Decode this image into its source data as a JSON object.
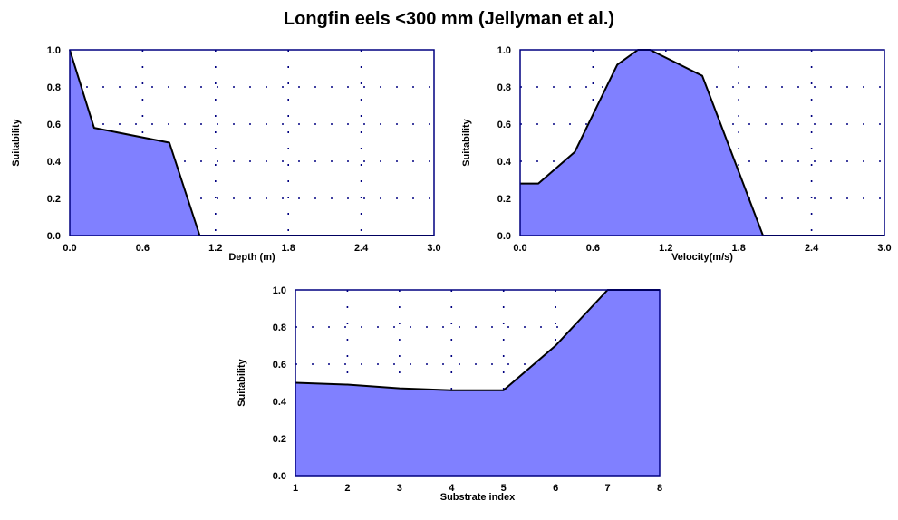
{
  "title": "Longfin eels <300 mm (Jellyman et al.)",
  "colors": {
    "fill": "#8080ff",
    "line": "#000000",
    "axes": "#000080",
    "grid": "#000080"
  },
  "chart_data": [
    {
      "type": "area",
      "xlabel": "Depth (m)",
      "ylabel": "Suitability",
      "xlim": [
        0,
        3.0
      ],
      "ylim": [
        0,
        1.0
      ],
      "xticks": [
        0.0,
        0.6,
        1.2,
        1.8,
        2.4,
        3.0
      ],
      "xtick_labels": [
        "0.0",
        "0.6",
        "1.2",
        "1.8",
        "2.4",
        "3.0"
      ],
      "yticks": [
        0.0,
        0.2,
        0.4,
        0.6,
        0.8,
        1.0
      ],
      "ytick_labels": [
        "0.0",
        "0.2",
        "0.4",
        "0.6",
        "0.8",
        "1.0"
      ],
      "grid": true,
      "x": [
        0,
        0.2,
        0.82,
        1.07,
        3.0
      ],
      "y": [
        1.0,
        0.58,
        0.5,
        0.0,
        0.0
      ]
    },
    {
      "type": "area",
      "xlabel": "Velocity(m/s)",
      "ylabel": "Suitability",
      "xlim": [
        0,
        3.0
      ],
      "ylim": [
        0,
        1.0
      ],
      "xticks": [
        0.0,
        0.6,
        1.2,
        1.8,
        2.4,
        3.0
      ],
      "xtick_labels": [
        "0.0",
        "0.6",
        "1.2",
        "1.8",
        "2.4",
        "3.0"
      ],
      "yticks": [
        0.0,
        0.2,
        0.4,
        0.6,
        0.8,
        1.0
      ],
      "ytick_labels": [
        "0.0",
        "0.2",
        "0.4",
        "0.6",
        "0.8",
        "1.0"
      ],
      "grid": true,
      "x": [
        0,
        0.15,
        0.45,
        0.8,
        0.97,
        1.07,
        1.5,
        2.0,
        3.0
      ],
      "y": [
        0.28,
        0.28,
        0.45,
        0.92,
        1.0,
        1.0,
        0.86,
        0.0,
        0.0
      ]
    },
    {
      "type": "area",
      "xlabel": "Substrate index",
      "ylabel": "Suitability",
      "xlim": [
        1,
        8
      ],
      "ylim": [
        0,
        1.0
      ],
      "xticks": [
        1,
        2,
        3,
        4,
        5,
        6,
        7,
        8
      ],
      "xtick_labels": [
        "1",
        "2",
        "3",
        "4",
        "5",
        "6",
        "7",
        "8"
      ],
      "yticks": [
        0.0,
        0.2,
        0.4,
        0.6,
        0.8,
        1.0
      ],
      "ytick_labels": [
        "0.0",
        "0.2",
        "0.4",
        "0.6",
        "0.8",
        "1.0"
      ],
      "grid": true,
      "x": [
        1,
        2,
        3,
        4,
        5,
        6,
        7,
        8
      ],
      "y": [
        0.5,
        0.49,
        0.47,
        0.46,
        0.46,
        0.7,
        1.0,
        1.0
      ]
    }
  ]
}
